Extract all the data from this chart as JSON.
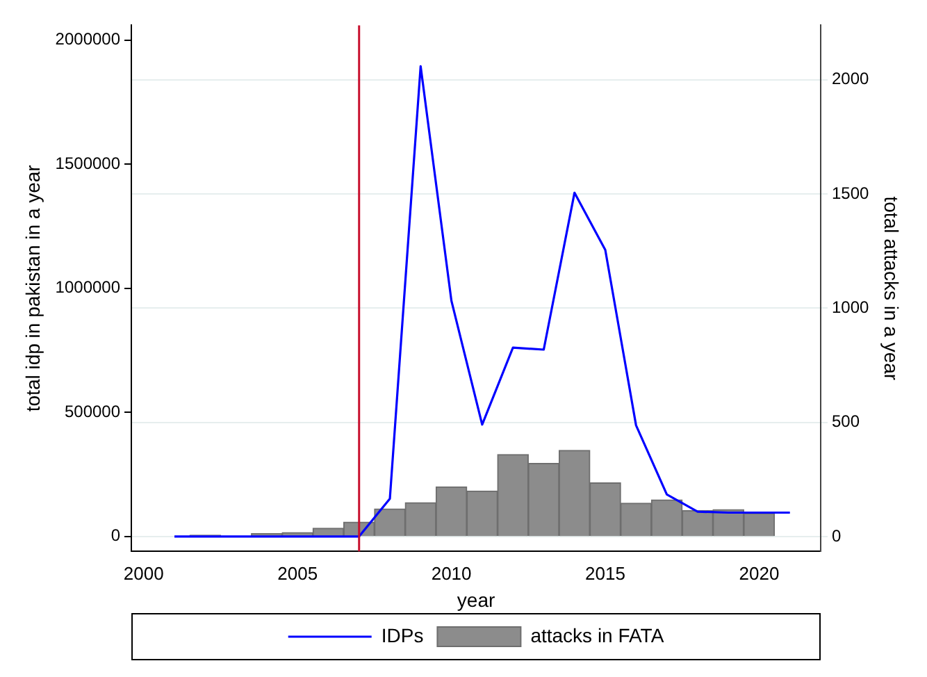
{
  "chart_data": {
    "type": "line",
    "xlabel": "year",
    "ylabel": "total idp in pakistan in a year",
    "y2label": "total attacks in a year",
    "series": [
      {
        "name": "IDPs",
        "color": "#0000ff",
        "axis": "y",
        "x": [
          2001,
          2002,
          2003,
          2004,
          2005,
          2006,
          2007,
          2008,
          2009,
          2010,
          2011,
          2012,
          2013,
          2014,
          2015,
          2016,
          2017,
          2018,
          2019,
          2020,
          2021
        ],
        "values": [
          0,
          0,
          0,
          0,
          0,
          0,
          0,
          152000,
          1895000,
          950000,
          451000,
          761000,
          753000,
          1385000,
          1155000,
          448000,
          169000,
          100000,
          96000,
          96000,
          96000
        ]
      },
      {
        "name": "attacks in FATA",
        "type": "bar",
        "color": "#8c8c8c",
        "axis": "y2",
        "x": [
          2002,
          2003,
          2004,
          2005,
          2006,
          2007,
          2008,
          2009,
          2010,
          2011,
          2012,
          2013,
          2014,
          2015,
          2016,
          2017,
          2018,
          2019,
          2020
        ],
        "values": [
          7,
          0,
          14,
          18,
          37,
          64,
          122,
          149,
          218,
          200,
          360,
          321,
          378,
          236,
          147,
          161,
          115,
          119,
          103
        ]
      }
    ],
    "xlim": [
      1999.6,
      2022
    ],
    "xticks": [
      2000,
      2005,
      2010,
      2015,
      2020
    ],
    "ylim": [
      -60000,
      2060000
    ],
    "yticks": [
      0,
      500000,
      1000000,
      1500000,
      2000000
    ],
    "y2lim": [
      -64,
      2238
    ],
    "y2ticks": [
      0,
      500,
      1000,
      1500,
      2000
    ],
    "grid": "y",
    "legend": "bottom",
    "ref_lines": [
      {
        "axis": "x",
        "value": 2007,
        "color": "#c8102e"
      }
    ]
  }
}
